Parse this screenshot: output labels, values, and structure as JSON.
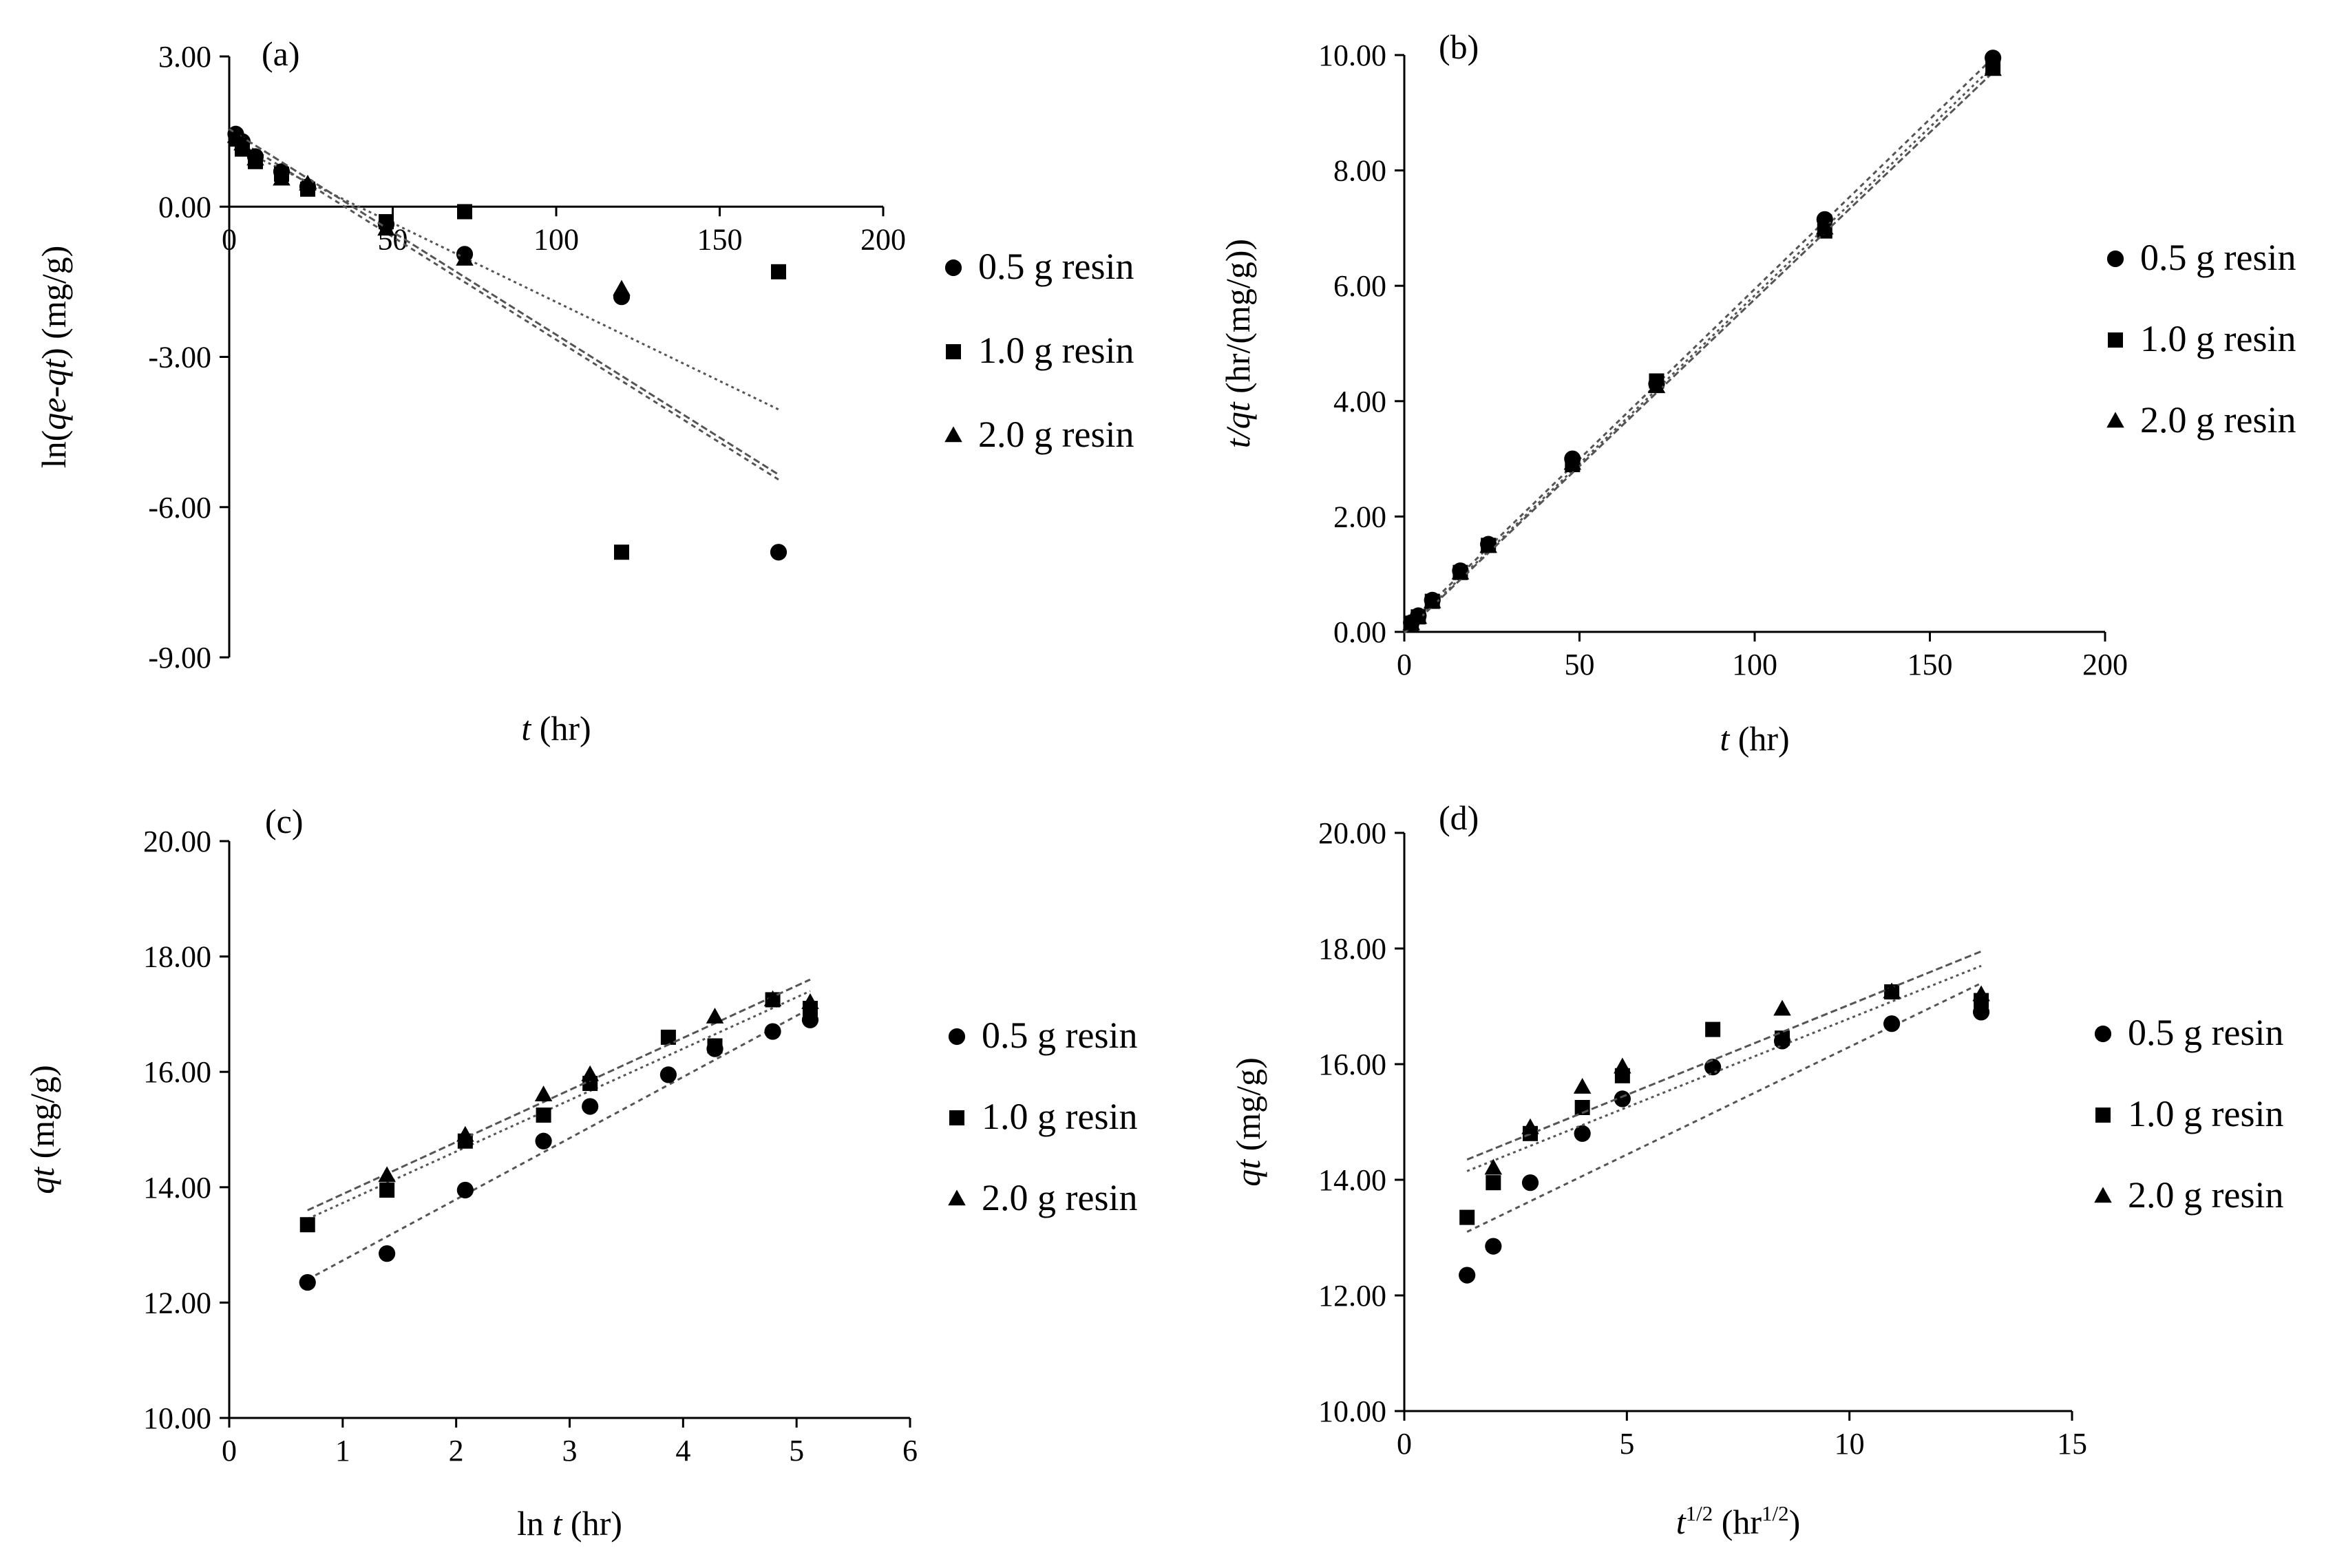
{
  "figure": {
    "description_free": true
  },
  "legend_labels": [
    "0.5 g resin",
    "1.0 g resin",
    "2.0 g resin"
  ],
  "colors": {
    "marker": "#000000",
    "fit_line": "#555555"
  },
  "chart_data": [
    {
      "id": "a",
      "type": "scatter",
      "panel_label": "(a)",
      "xlabel_parts": [
        {
          "t": "t",
          "i": true
        },
        {
          "t": " (hr)"
        }
      ],
      "ylabel_parts": [
        {
          "t": "ln("
        },
        {
          "t": "qe-qt",
          "i": true
        },
        {
          "t": ")  (mg/g)"
        }
      ],
      "xlim": [
        0,
        200
      ],
      "ylim": [
        -9,
        3
      ],
      "x_ticks": [
        0,
        50,
        100,
        150,
        200
      ],
      "x_tick_labels": [
        "0",
        "50",
        "100",
        "150",
        "200"
      ],
      "y_ticks": [
        3,
        0,
        -3,
        -6,
        -9
      ],
      "y_tick_labels": [
        "3.00",
        "0.00",
        "-3.00",
        "-6.00",
        "-9.00"
      ],
      "x_axis_at_zero": true,
      "series": [
        {
          "name": "0.5 g resin",
          "marker": "circle",
          "x": [
            2,
            4,
            8,
            16,
            24,
            48,
            72,
            120,
            168
          ],
          "y": [
            1.45,
            1.3,
            1.0,
            0.7,
            0.4,
            -0.35,
            -0.95,
            -1.8,
            -6.9
          ],
          "fit": [
            [
              0,
              1.45
            ],
            [
              168,
              -5.45
            ]
          ]
        },
        {
          "name": "1.0 g resin",
          "marker": "square",
          "x": [
            2,
            4,
            8,
            16,
            24,
            48,
            72,
            120,
            168
          ],
          "y": [
            1.35,
            1.15,
            0.9,
            0.65,
            0.35,
            -0.3,
            -0.1,
            -6.9,
            -1.3
          ],
          "fit": [
            [
              0,
              1.25
            ],
            [
              168,
              -4.05
            ]
          ]
        },
        {
          "name": "2.0 g resin",
          "marker": "triangle",
          "x": [
            2,
            4,
            8,
            16,
            24,
            48,
            72,
            120
          ],
          "y": [
            1.4,
            1.25,
            0.95,
            0.55,
            0.45,
            -0.45,
            -1.05,
            -1.65
          ],
          "fit": [
            [
              0,
              1.55
            ],
            [
              168,
              -5.35
            ]
          ]
        }
      ]
    },
    {
      "id": "b",
      "type": "scatter",
      "panel_label": "(b)",
      "xlabel_parts": [
        {
          "t": "t",
          "i": true
        },
        {
          "t": " (hr)"
        }
      ],
      "ylabel_parts": [
        {
          "t": "t/qt",
          "i": true
        },
        {
          "t": " (hr/(mg/g))"
        }
      ],
      "xlim": [
        0,
        200
      ],
      "ylim": [
        0,
        10
      ],
      "x_ticks": [
        0,
        50,
        100,
        150,
        200
      ],
      "x_tick_labels": [
        "0",
        "50",
        "100",
        "150",
        "200"
      ],
      "y_ticks": [
        0,
        2,
        4,
        6,
        8,
        10
      ],
      "y_tick_labels": [
        "0.00",
        "2.00",
        "4.00",
        "6.00",
        "8.00",
        "10.00"
      ],
      "series": [
        {
          "name": "0.5 g resin",
          "marker": "circle",
          "x": [
            2,
            4,
            8,
            16,
            24,
            48,
            72,
            120,
            168
          ],
          "y": [
            0.16,
            0.28,
            0.55,
            1.06,
            1.52,
            3.0,
            4.3,
            7.15,
            9.95
          ],
          "fit": [
            [
              0,
              0.05
            ],
            [
              168,
              9.95
            ]
          ]
        },
        {
          "name": "1.0 g resin",
          "marker": "square",
          "x": [
            2,
            4,
            8,
            16,
            24,
            48,
            72,
            120,
            168
          ],
          "y": [
            0.15,
            0.26,
            0.53,
            1.03,
            1.5,
            2.9,
            4.35,
            6.95,
            9.8
          ],
          "fit": [
            [
              0,
              0.0
            ],
            [
              168,
              9.8
            ]
          ]
        },
        {
          "name": "2.0 g resin",
          "marker": "triangle",
          "x": [
            2,
            4,
            8,
            16,
            24,
            48,
            72,
            120,
            168
          ],
          "y": [
            0.14,
            0.25,
            0.52,
            1.02,
            1.48,
            2.92,
            4.25,
            7.0,
            9.75
          ],
          "fit": [
            [
              0,
              -0.02
            ],
            [
              168,
              9.7
            ]
          ]
        }
      ]
    },
    {
      "id": "c",
      "type": "scatter",
      "panel_label": "(c)",
      "xlabel_parts": [
        {
          "t": "ln "
        },
        {
          "t": "t",
          "i": true
        },
        {
          "t": " (hr)"
        }
      ],
      "ylabel_parts": [
        {
          "t": "qt",
          "i": true
        },
        {
          "t": " (mg/g)"
        }
      ],
      "xlim": [
        0,
        6
      ],
      "ylim": [
        10,
        20
      ],
      "x_ticks": [
        0,
        1,
        2,
        3,
        4,
        5,
        6
      ],
      "x_tick_labels": [
        "0",
        "1",
        "2",
        "3",
        "4",
        "5",
        "6"
      ],
      "y_ticks": [
        10,
        12,
        14,
        16,
        18,
        20
      ],
      "y_tick_labels": [
        "10.00",
        "12.00",
        "14.00",
        "16.00",
        "18.00",
        "20.00"
      ],
      "series": [
        {
          "name": "0.5 g resin",
          "marker": "circle",
          "x": [
            0.69,
            1.39,
            2.08,
            2.77,
            3.18,
            3.87,
            4.28,
            4.79,
            5.12
          ],
          "y": [
            12.35,
            12.85,
            13.95,
            14.8,
            15.4,
            15.95,
            16.4,
            16.7,
            16.9
          ],
          "fit": [
            [
              0.69,
              12.4
            ],
            [
              5.12,
              17.1
            ]
          ]
        },
        {
          "name": "1.0 g resin",
          "marker": "square",
          "x": [
            0.69,
            1.39,
            2.08,
            2.77,
            3.18,
            3.87,
            4.28,
            4.79,
            5.12
          ],
          "y": [
            13.35,
            13.95,
            14.8,
            15.25,
            15.8,
            16.6,
            16.45,
            17.25,
            17.1
          ],
          "fit": [
            [
              0.69,
              13.45
            ],
            [
              5.12,
              17.4
            ]
          ]
        },
        {
          "name": "2.0 g resin",
          "marker": "triangle",
          "x": [
            1.39,
            2.08,
            2.77,
            3.18,
            4.28,
            4.79,
            5.12
          ],
          "y": [
            14.2,
            14.9,
            15.6,
            15.95,
            16.95,
            17.25,
            17.2
          ],
          "fit": [
            [
              0.69,
              13.6
            ],
            [
              5.12,
              17.6
            ]
          ]
        }
      ]
    },
    {
      "id": "d",
      "type": "scatter",
      "panel_label": "(d)",
      "xlabel_parts": [
        {
          "t": "t",
          "i": true
        },
        {
          "t": "1/2",
          "sup": true
        },
        {
          "t": " (hr"
        },
        {
          "t": "1/2",
          "sup": true
        },
        {
          "t": ")"
        }
      ],
      "ylabel_parts": [
        {
          "t": "qt",
          "i": true
        },
        {
          "t": " (mg/g)"
        }
      ],
      "xlim": [
        0,
        15
      ],
      "ylim": [
        10,
        20
      ],
      "x_ticks": [
        0,
        5,
        10,
        15
      ],
      "x_tick_labels": [
        "0",
        "5",
        "10",
        "15"
      ],
      "y_ticks": [
        10,
        12,
        14,
        16,
        18,
        20
      ],
      "y_tick_labels": [
        "10.00",
        "12.00",
        "14.00",
        "16.00",
        "18.00",
        "20.00"
      ],
      "series": [
        {
          "name": "0.5 g resin",
          "marker": "circle",
          "x": [
            1.41,
            2.0,
            2.83,
            4.0,
            4.9,
            6.93,
            8.49,
            10.95,
            12.96
          ],
          "y": [
            12.35,
            12.85,
            13.95,
            14.8,
            15.4,
            15.95,
            16.4,
            16.7,
            16.9
          ],
          "fit": [
            [
              1.41,
              13.1
            ],
            [
              12.96,
              17.4
            ]
          ]
        },
        {
          "name": "1.0 g resin",
          "marker": "square",
          "x": [
            1.41,
            2.0,
            2.83,
            4.0,
            4.9,
            6.93,
            8.49,
            10.95,
            12.96
          ],
          "y": [
            13.35,
            13.95,
            14.8,
            15.25,
            15.8,
            16.6,
            16.45,
            17.25,
            17.1
          ],
          "fit": [
            [
              1.41,
              14.15
            ],
            [
              12.96,
              17.7
            ]
          ]
        },
        {
          "name": "2.0 g resin",
          "marker": "triangle",
          "x": [
            2.0,
            2.83,
            4.0,
            4.9,
            8.49,
            10.95,
            12.96
          ],
          "y": [
            14.2,
            14.9,
            15.6,
            15.95,
            16.95,
            17.25,
            17.2
          ],
          "fit": [
            [
              1.41,
              14.35
            ],
            [
              12.96,
              17.95
            ]
          ]
        }
      ]
    }
  ]
}
